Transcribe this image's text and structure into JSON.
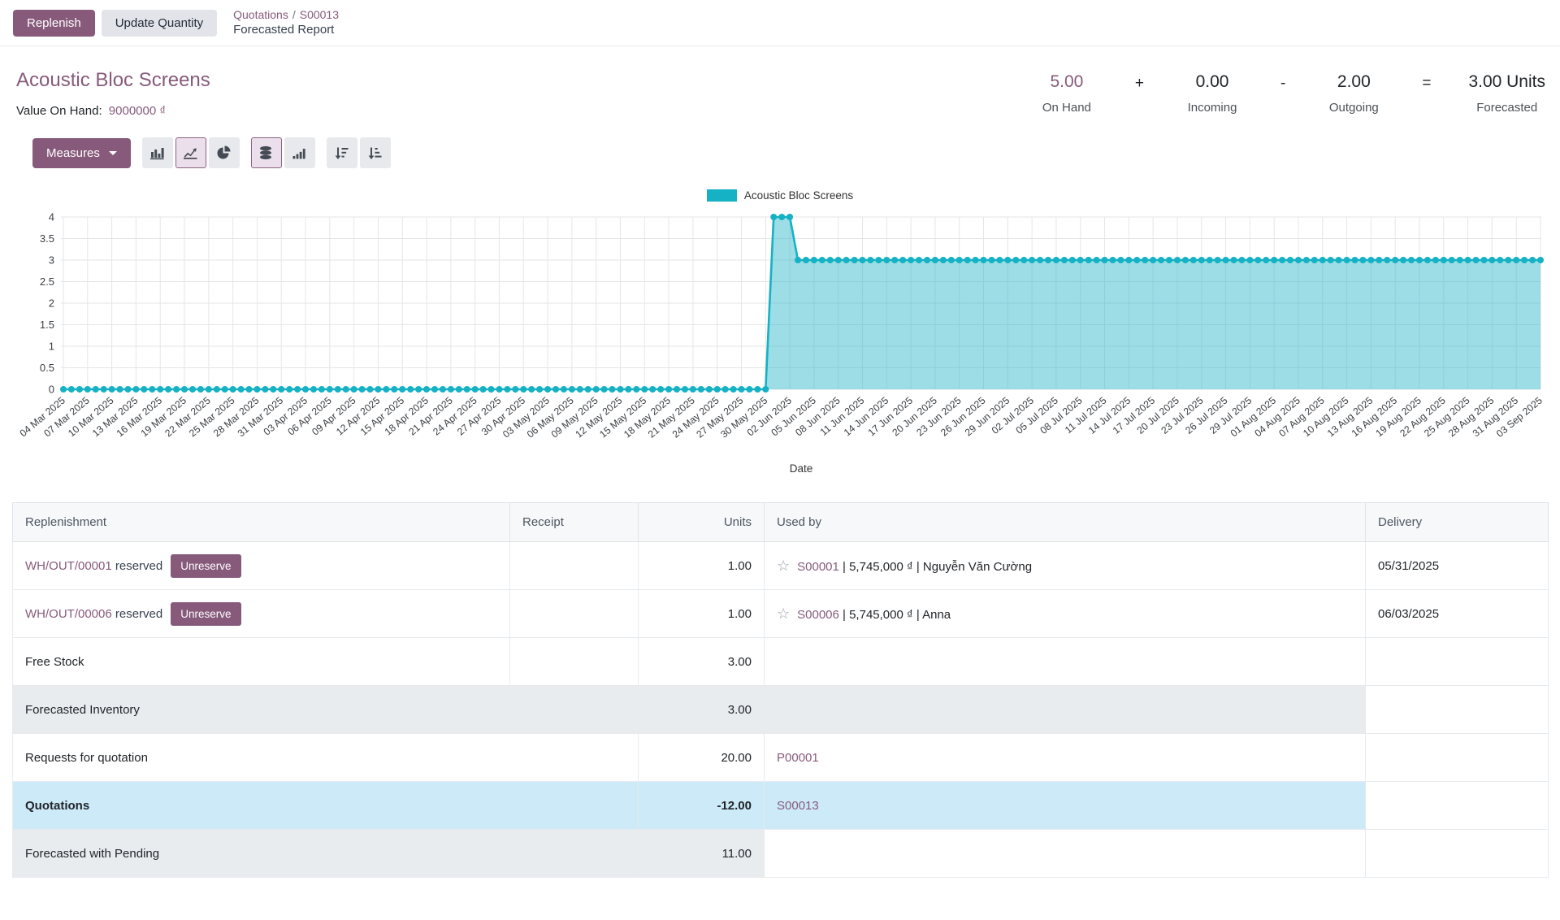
{
  "colors": {
    "primary": "#875A7B",
    "chart_line": "#15b1c4",
    "chart_fill": "rgba(21,177,196,0.42)",
    "row_highlight": "#cdeaf9",
    "row_muted": "#e9ecef"
  },
  "control_panel": {
    "replenish": "Replenish",
    "update_quantity": "Update Quantity",
    "breadcrumb": {
      "level1": "Quotations",
      "separator": "/",
      "level2": "S00013",
      "current": "Forecasted Report"
    }
  },
  "product": {
    "title": "Acoustic Bloc Screens",
    "value_on_hand_label": "Value On Hand:",
    "value_on_hand": "9000000 ₫"
  },
  "stats": {
    "on_hand": {
      "value": "5.00",
      "label": "On Hand"
    },
    "plus": "+",
    "incoming": {
      "value": "0.00",
      "label": "Incoming"
    },
    "minus": "-",
    "outgoing": {
      "value": "2.00",
      "label": "Outgoing"
    },
    "equals": "=",
    "forecasted": {
      "value": "3.00 Units",
      "label": "Forecasted"
    }
  },
  "toolbar": {
    "measures": "Measures",
    "icons": [
      {
        "name": "bar-chart",
        "active": false,
        "group": 1
      },
      {
        "name": "line-chart",
        "active": true,
        "group": 1
      },
      {
        "name": "pie-chart",
        "active": false,
        "group": 1
      },
      {
        "name": "stacked",
        "active": true,
        "group": 2
      },
      {
        "name": "cumulative",
        "active": false,
        "group": 2
      },
      {
        "name": "sort-descending",
        "active": false,
        "group": 3
      },
      {
        "name": "sort-ascending",
        "active": false,
        "group": 3
      }
    ]
  },
  "chart_data": {
    "type": "area",
    "legend_label": "Acoustic Bloc Screens",
    "xlabel": "Date",
    "ylim": [
      0,
      4
    ],
    "ytick_step": 0.5,
    "grid": true,
    "legend_position": "top-center",
    "x_start": "2025-03-04",
    "x_end": "2025-09-03",
    "x_tick_every_days": 3,
    "x_tick_labels": [
      "04 Mar 2025",
      "07 Mar 2025",
      "10 Mar 2025",
      "13 Mar 2025",
      "16 Mar 2025",
      "19 Mar 2025",
      "22 Mar 2025",
      "25 Mar 2025",
      "28 Mar 2025",
      "31 Mar 2025",
      "03 Apr 2025",
      "06 Apr 2025",
      "09 Apr 2025",
      "12 Apr 2025",
      "15 Apr 2025",
      "18 Apr 2025",
      "21 Apr 2025",
      "24 Apr 2025",
      "27 Apr 2025",
      "30 Apr 2025",
      "03 May 2025",
      "06 May 2025",
      "09 May 2025",
      "12 May 2025",
      "15 May 2025",
      "18 May 2025",
      "21 May 2025",
      "24 May 2025",
      "27 May 2025",
      "30 May 2025",
      "02 Jun 2025",
      "05 Jun 2025",
      "08 Jun 2025",
      "11 Jun 2025",
      "14 Jun 2025",
      "17 Jun 2025",
      "20 Jun 2025",
      "23 Jun 2025",
      "26 Jun 2025",
      "29 Jun 2025",
      "02 Jul 2025",
      "05 Jul 2025",
      "08 Jul 2025",
      "11 Jul 2025",
      "14 Jul 2025",
      "17 Jul 2025",
      "20 Jul 2025",
      "23 Jul 2025",
      "26 Jul 2025",
      "29 Jul 2025",
      "01 Aug 2025",
      "04 Aug 2025",
      "07 Aug 2025",
      "10 Aug 2025",
      "13 Aug 2025",
      "16 Aug 2025",
      "19 Aug 2025",
      "22 Aug 2025",
      "25 Aug 2025",
      "28 Aug 2025",
      "31 Aug 2025",
      "03 Sep 2025"
    ],
    "series": [
      {
        "name": "Acoustic Bloc Screens",
        "point_frequency": "daily",
        "segments": [
          {
            "from": "2025-03-04",
            "to": "2025-05-30",
            "value": 0
          },
          {
            "from": "2025-05-31",
            "to": "2025-06-02",
            "value": 4
          },
          {
            "from": "2025-06-03",
            "to": "2025-09-03",
            "value": 3
          }
        ]
      }
    ]
  },
  "table": {
    "headers": [
      "Replenishment",
      "Receipt",
      "Units",
      "Used by",
      "Delivery"
    ],
    "rows": [
      {
        "replenishment": {
          "link": "WH/OUT/00001",
          "note": "reserved",
          "action": "Unreserve"
        },
        "receipt": "",
        "units": "1.00",
        "used_by": {
          "star": "☆",
          "link": "S00001",
          "text": " | 5,745,000 ₫ | Nguyễn Văn Cường"
        },
        "delivery": "05/31/2025",
        "bg": "white"
      },
      {
        "replenishment": {
          "link": "WH/OUT/00006",
          "note": "reserved",
          "action": "Unreserve"
        },
        "receipt": "",
        "units": "1.00",
        "used_by": {
          "star": "☆",
          "link": "S00006",
          "text": " | 5,745,000 ₫ | Anna"
        },
        "delivery": "06/03/2025",
        "bg": "white"
      },
      {
        "replenishment": {
          "label": "Free Stock"
        },
        "receipt": "",
        "units": "3.00",
        "bg": "white"
      },
      {
        "replenishment": {
          "label": "Forecasted Inventory"
        },
        "units": "3.00",
        "bg": "gray",
        "bg_extent": "to_usedby"
      },
      {
        "replenishment": {
          "label": "Requests for quotation"
        },
        "units": "20.00",
        "used_by": {
          "link": "P00001"
        },
        "bg": "white"
      },
      {
        "replenishment": {
          "label": "Quotations",
          "bold": true
        },
        "units": "-12.00",
        "used_by": {
          "link": "S00013"
        },
        "bg": "blue",
        "bg_extent": "to_usedby"
      },
      {
        "replenishment": {
          "label": "Forecasted with Pending"
        },
        "units": "11.00",
        "bg": "gray",
        "bg_extent": "to_units"
      }
    ]
  }
}
